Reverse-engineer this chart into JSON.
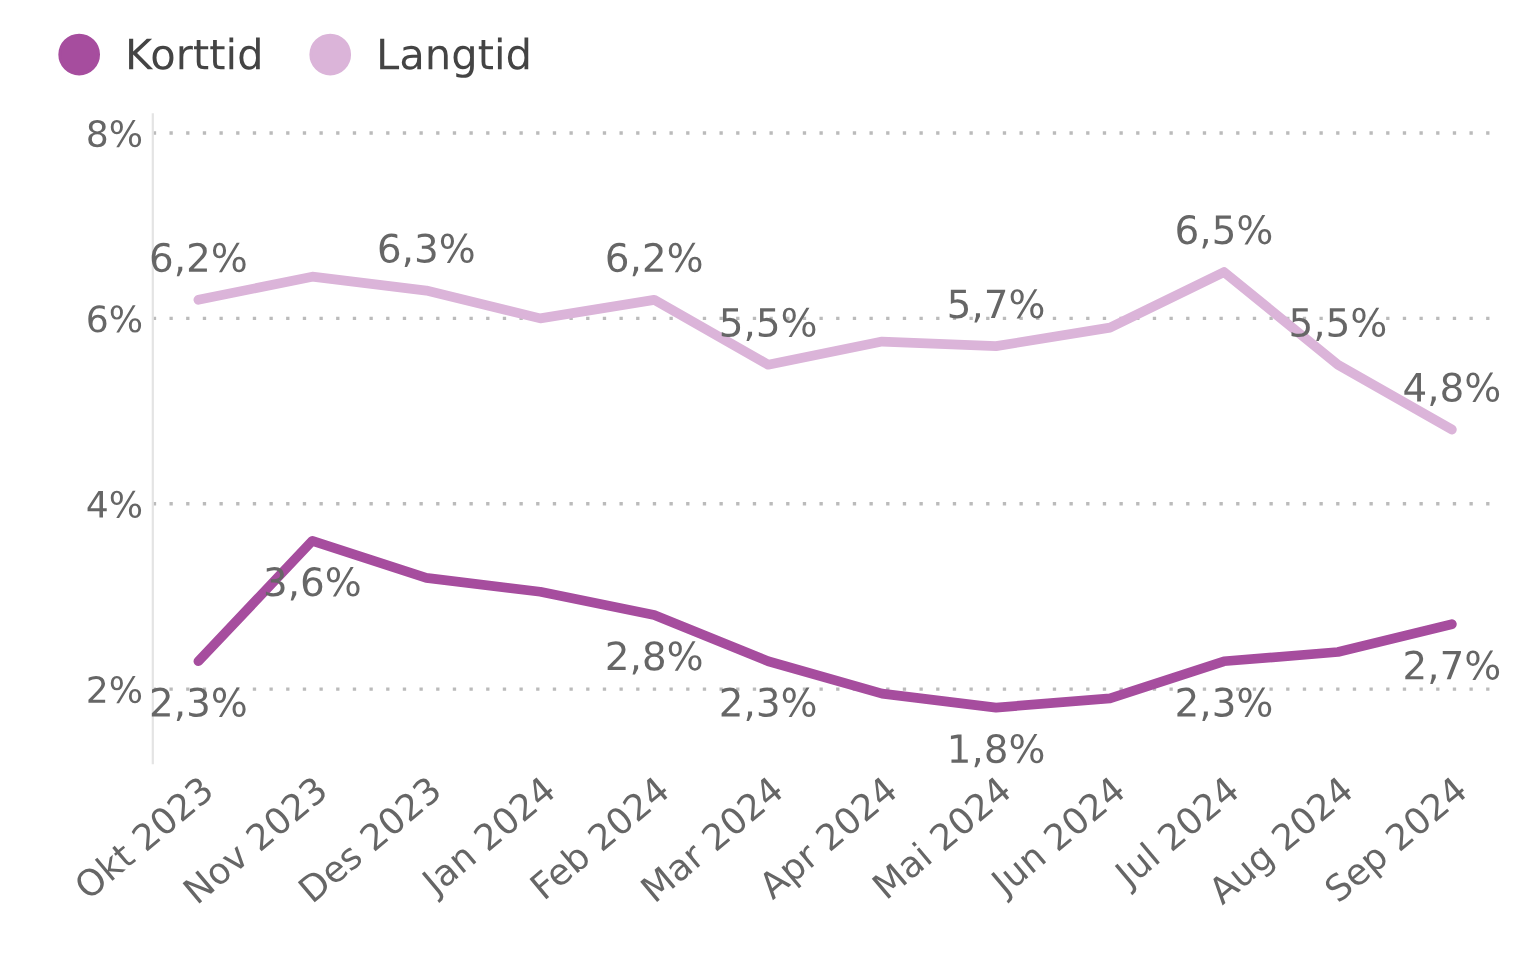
{
  "chart_data": {
    "type": "line",
    "categories": [
      "Okt 2023",
      "Nov 2023",
      "Des 2023",
      "Jan 2024",
      "Feb 2024",
      "Mar 2024",
      "Apr 2024",
      "Mai 2024",
      "Jun 2024",
      "Jul 2024",
      "Aug 2024",
      "Sep 2024"
    ],
    "series": [
      {
        "name": "Korttid",
        "color": "#a64d9e",
        "values": [
          2.3,
          3.6,
          3.2,
          3.05,
          2.8,
          2.3,
          1.95,
          1.8,
          1.9,
          2.3,
          2.4,
          2.7
        ],
        "value_labels": [
          "2,3%",
          "3,6%",
          null,
          null,
          "2,8%",
          "2,3%",
          null,
          "1,8%",
          null,
          "2,3%",
          null,
          "2,7%"
        ]
      },
      {
        "name": "Langtid",
        "color": "#dbb4d9",
        "values": [
          6.2,
          6.45,
          6.3,
          6.0,
          6.2,
          5.5,
          5.75,
          5.7,
          5.9,
          6.5,
          5.5,
          4.8
        ],
        "value_labels": [
          "6,2%",
          null,
          "6,3%",
          null,
          "6,2%",
          "5,5%",
          null,
          "5,7%",
          null,
          "6,5%",
          "5,5%",
          "4,8%"
        ]
      }
    ],
    "ylim": [
      1.2,
      8.2
    ],
    "yticks": [
      {
        "value": 2,
        "label": "2%"
      },
      {
        "value": 4,
        "label": "4%"
      },
      {
        "value": 6,
        "label": "6%"
      },
      {
        "value": 8,
        "label": "8%"
      }
    ],
    "grid": "y",
    "legend": "top left",
    "line_style": "solid",
    "marker": "none"
  }
}
